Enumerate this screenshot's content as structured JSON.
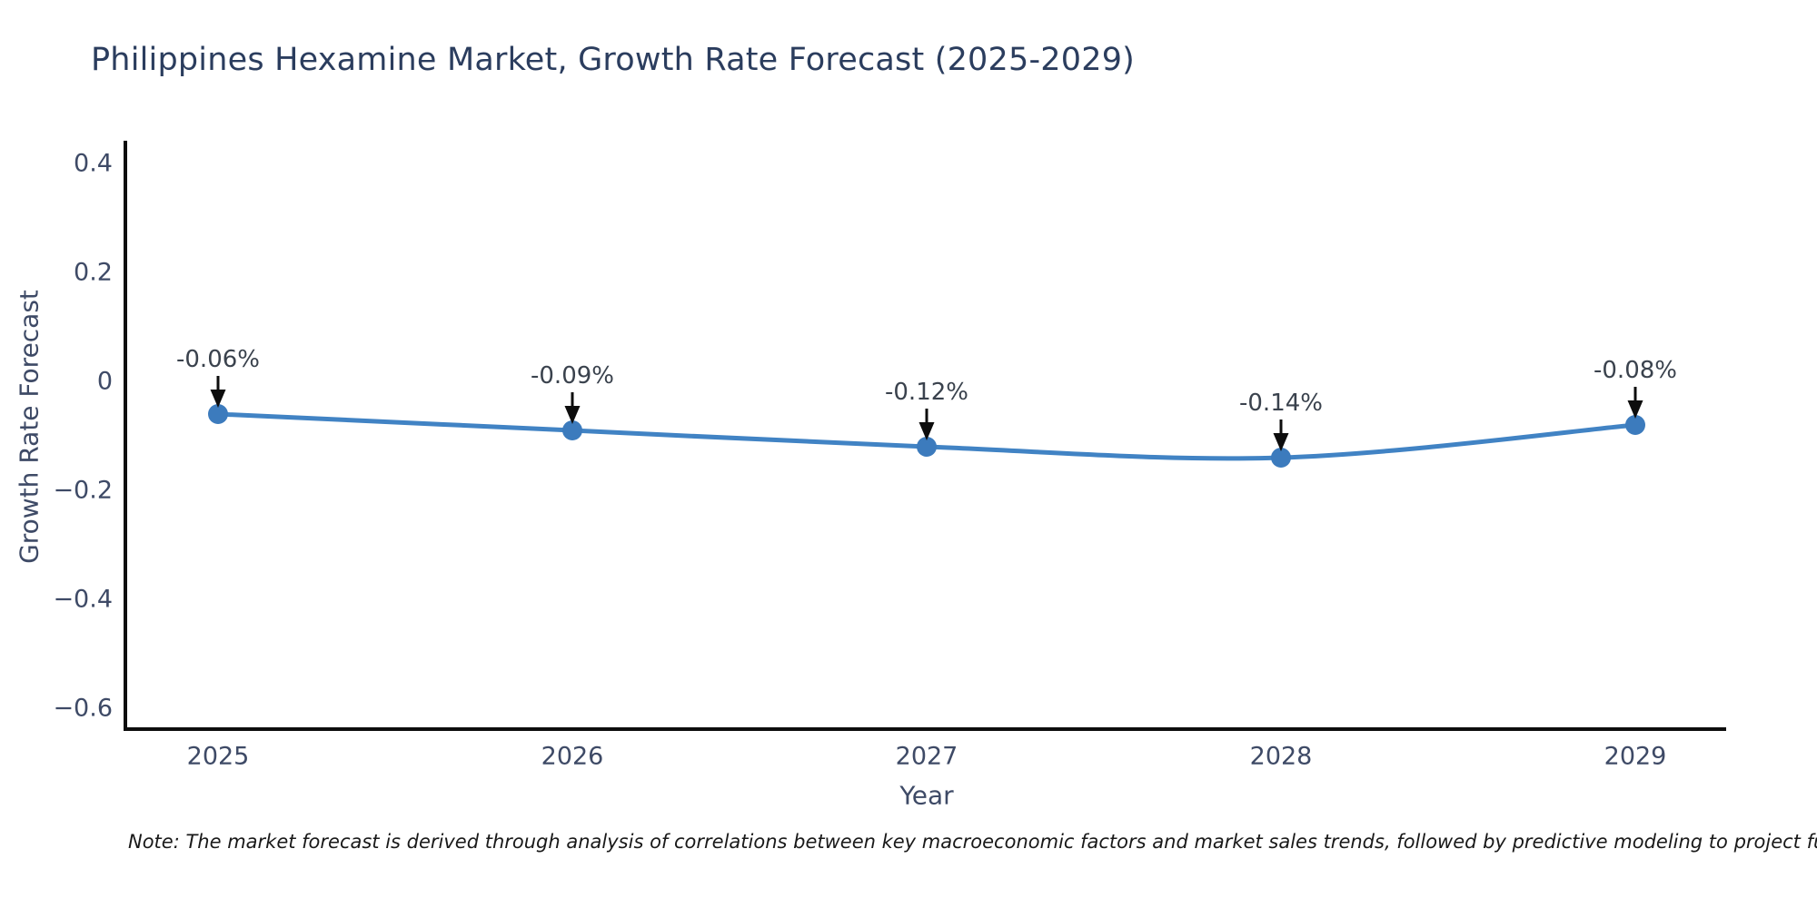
{
  "title": "Philippines Hexamine Market, Growth Rate Forecast (2025-2029)",
  "note": "Note: The market forecast is derived through analysis of correlations between key macroeconomic factors and market sales trends, followed by predictive modeling to project future sa",
  "chart_data": {
    "type": "line",
    "title": "Philippines Hexamine Market, Growth Rate Forecast (2025-2029)",
    "xlabel": "Year",
    "ylabel": "Growth Rate Forecast",
    "categories": [
      "2025",
      "2026",
      "2027",
      "2028",
      "2029"
    ],
    "series": [
      {
        "name": "Growth Rate Forecast",
        "values": [
          -0.06,
          -0.09,
          -0.12,
          -0.14,
          -0.08
        ]
      }
    ],
    "point_labels": [
      "-0.06%",
      "-0.09%",
      "-0.12%",
      "-0.14%",
      "-0.08%"
    ],
    "ytick_labels": [
      "0.4",
      "0.2",
      "0",
      "−0.2",
      "−0.4",
      "−0.6"
    ],
    "ytick_values": [
      0.4,
      0.2,
      0,
      -0.2,
      -0.4,
      -0.6
    ],
    "ylim": [
      -0.64,
      0.43
    ],
    "line_shape": "spline",
    "markers": true,
    "grid": false,
    "legend": false,
    "annotations": "value label with downward arrow above each data point"
  },
  "colors": {
    "line": "#4183c4",
    "marker": "#3c7bbd",
    "axis_line": "#0d0d0d",
    "title_text": "#2b3d5e",
    "tick_text": "#3e4a66",
    "axis_title_text": "#3e4a66",
    "annotation_text": "#3a424d",
    "annotation_arrow": "#0d0d0d",
    "note_text": "#191919",
    "background": "#ffffff"
  }
}
